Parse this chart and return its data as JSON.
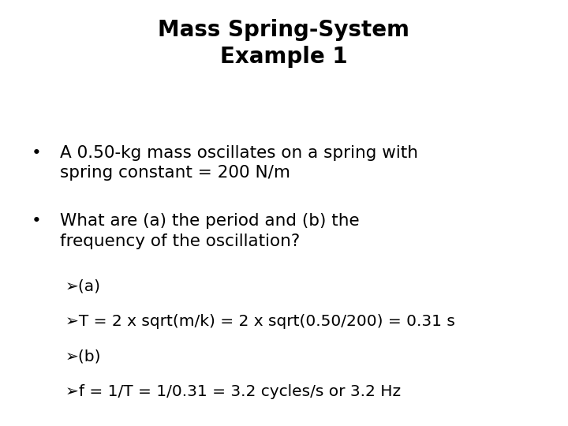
{
  "title_line1": "Mass Spring-System",
  "title_line2": "Example 1",
  "bullet1_line1": "A 0.50-kg mass oscillates on a spring with",
  "bullet1_line2": "spring constant = 200 N/m",
  "bullet2_line1": "What are (a) the period and (b) the",
  "bullet2_line2": "frequency of the oscillation?",
  "sub1": "➢(a)",
  "sub2": "➢T = 2 x sqrt(m/k) = 2 x sqrt(0.50/200) = 0.31 s",
  "sub3": "➢(b)",
  "sub4": "➢f = 1/T = 1/0.31 = 3.2 cycles/s or 3.2 Hz",
  "background_color": "#ffffff",
  "text_color": "#000000",
  "title_fontsize": 20,
  "body_fontsize": 15.5,
  "sub_fontsize": 14.5,
  "bullet_char": "•"
}
